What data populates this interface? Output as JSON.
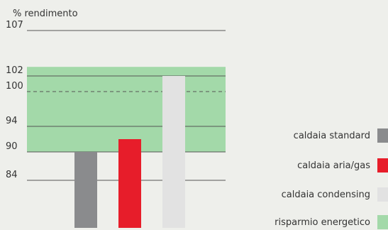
{
  "chart_data": {
    "type": "bar",
    "ylabel": "% rendimento",
    "categories": [
      "caldaia standard",
      "caldaia aria/gas",
      "caldaia condensing"
    ],
    "values": [
      90,
      92,
      102
    ],
    "colors": [
      "#8a8b8d",
      "#e71d2a",
      "#e2e2e2"
    ],
    "yticks": [
      84,
      90,
      94,
      100,
      102,
      107
    ],
    "dashed_reference": 100,
    "band": {
      "label": "risparmio energetico",
      "from": 90,
      "to": 103,
      "color": "#a3d9a9"
    },
    "legend": [
      {
        "label": "caldaia standard",
        "color": "#8a8b8d"
      },
      {
        "label": "caldaia aria/gas",
        "color": "#e71d2a"
      },
      {
        "label": "caldaia condensing",
        "color": "#e2e2e2"
      },
      {
        "label": "risparmio energetico",
        "color": "#a3d9a9"
      }
    ]
  }
}
